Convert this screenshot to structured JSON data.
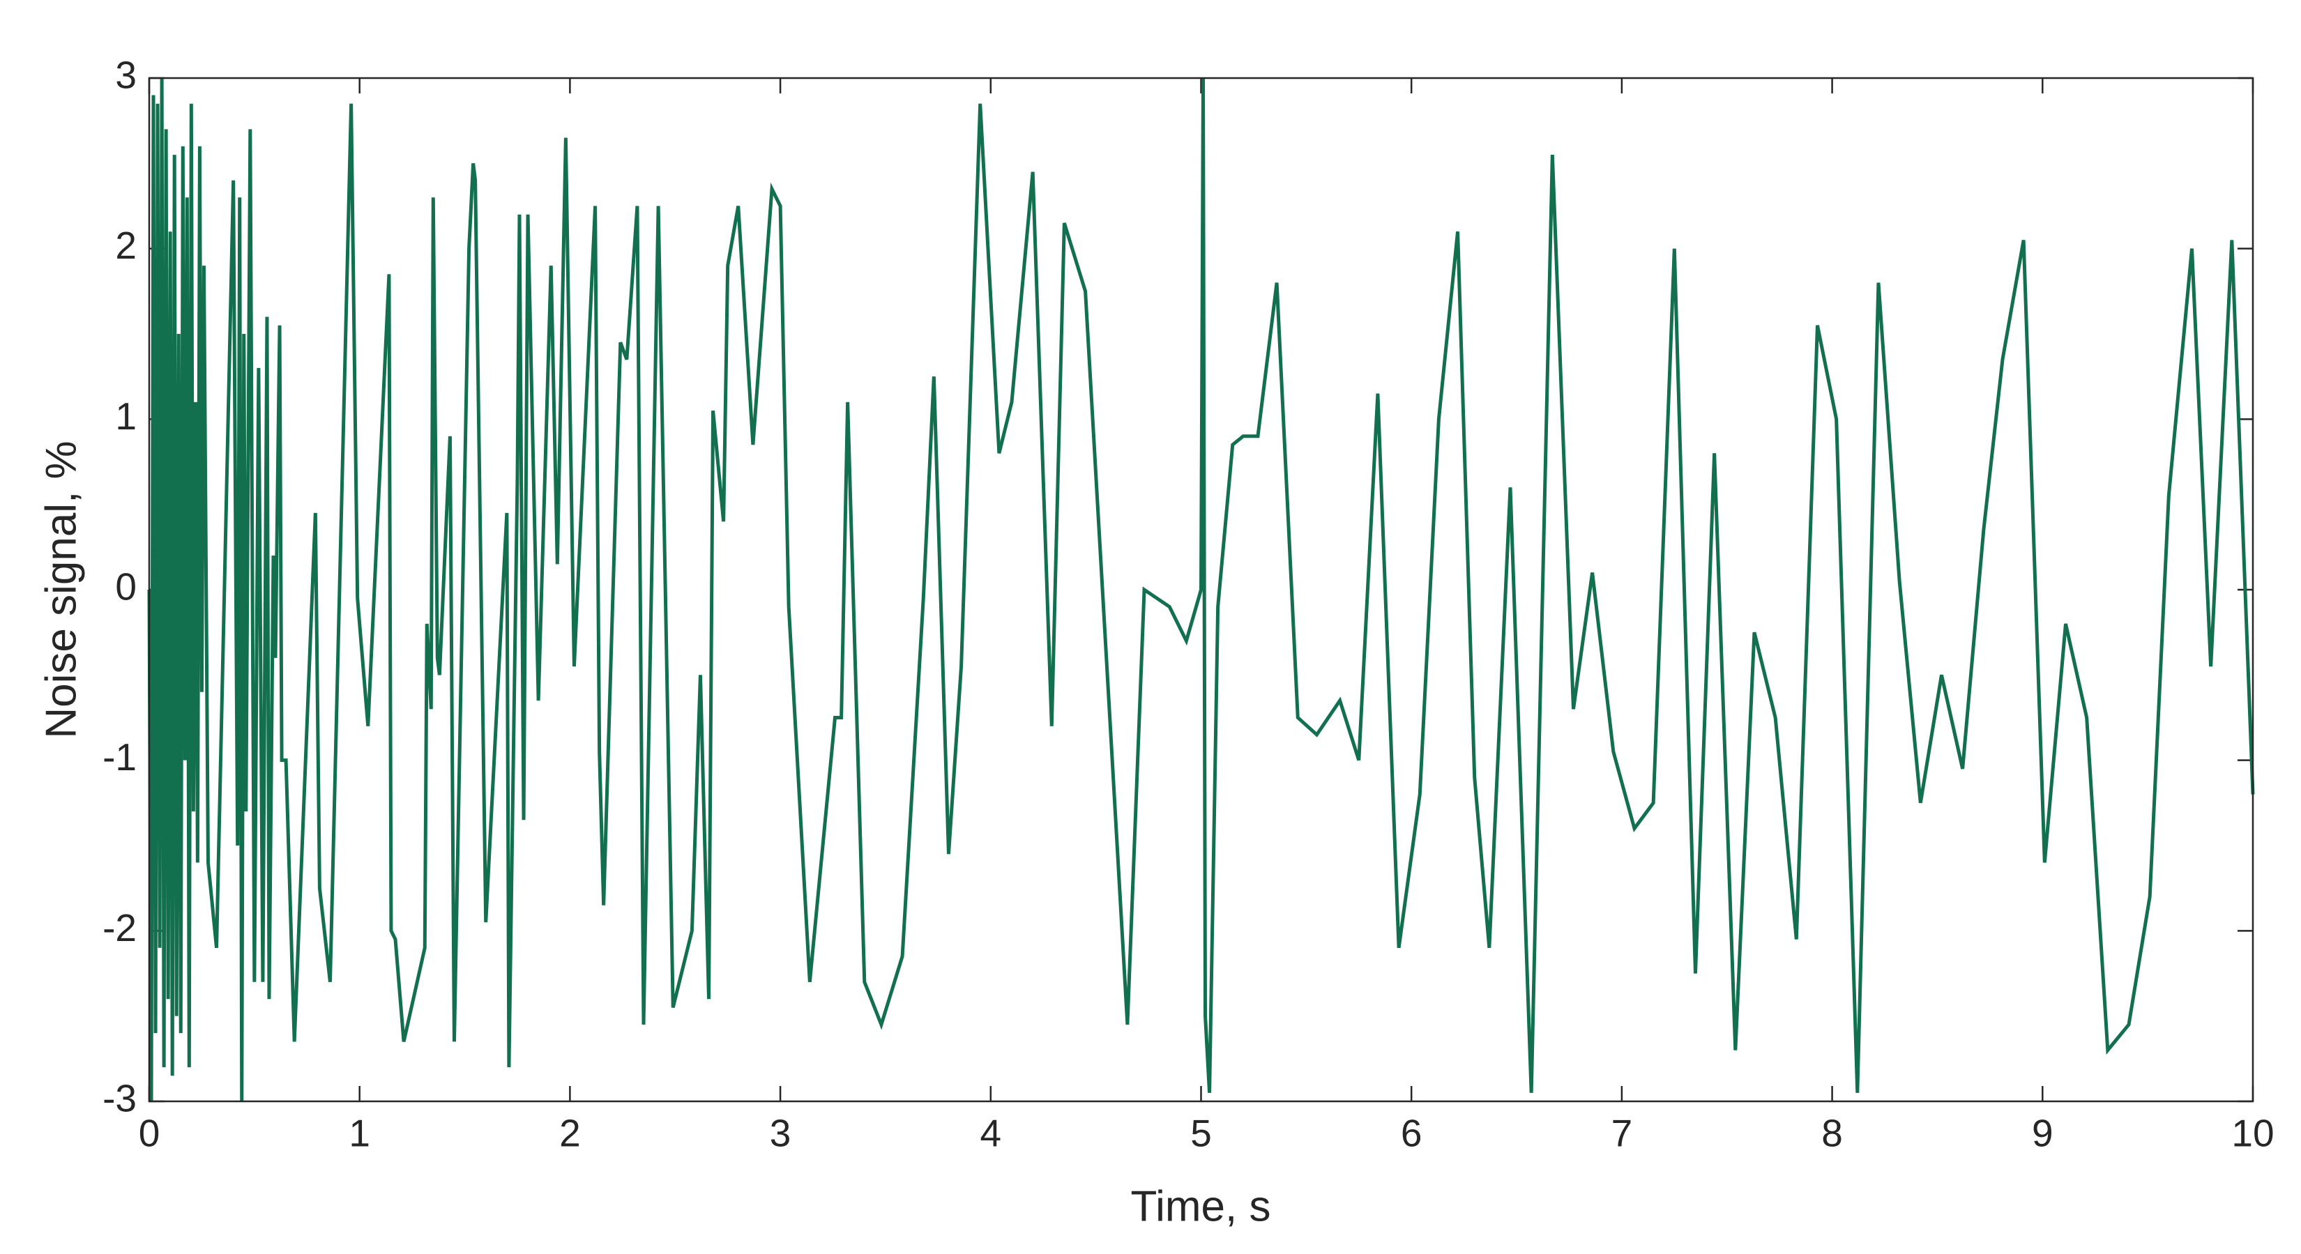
{
  "chart_data": {
    "type": "line",
    "xlabel": "Time, s",
    "ylabel": "Noise signal, %",
    "color": "#12704f",
    "xlim": [
      0,
      10
    ],
    "ylim": [
      -3,
      3
    ],
    "xticks": [
      0,
      1,
      2,
      3,
      4,
      5,
      6,
      7,
      8,
      9,
      10
    ],
    "yticks": [
      -3,
      -2,
      -1,
      0,
      1,
      2,
      3
    ],
    "grid": false,
    "x": [
      0,
      0.01,
      0.02,
      0.03,
      0.04,
      0.05,
      0.06,
      0.07,
      0.08,
      0.09,
      0.1,
      0.11,
      0.12,
      0.13,
      0.14,
      0.15,
      0.16,
      0.17,
      0.18,
      0.19,
      0.2,
      0.21,
      0.22,
      0.23,
      0.24,
      0.25,
      0.26,
      0.28,
      0.32,
      0.4,
      0.42,
      0.43,
      0.44,
      0.45,
      0.46,
      0.48,
      0.5,
      0.52,
      0.54,
      0.56,
      0.57,
      0.59,
      0.6,
      0.62,
      0.63,
      0.65,
      0.69,
      0.79,
      0.81,
      0.86,
      0.96,
      0.99,
      1.04,
      1.14,
      1.15,
      1.17,
      1.21,
      1.31,
      1.32,
      1.34,
      1.35,
      1.37,
      1.38,
      1.43,
      1.45,
      1.52,
      1.54,
      1.55,
      1.6,
      1.7,
      1.71,
      1.75,
      1.76,
      1.78,
      1.8,
      1.85,
      1.91,
      1.94,
      1.98,
      2.02,
      2.12,
      2.14,
      2.16,
      2.24,
      2.27,
      2.32,
      2.35,
      2.42,
      2.49,
      2.58,
      2.62,
      2.66,
      2.68,
      2.73,
      2.75,
      2.8,
      2.83,
      2.87,
      2.96,
      3.0,
      3.04,
      3.14,
      3.26,
      3.29,
      3.32,
      3.4,
      3.48,
      3.58,
      3.68,
      3.73,
      3.8,
      3.86,
      3.95,
      4.04,
      4.1,
      4.2,
      4.29,
      4.35,
      4.45,
      4.65,
      4.73,
      4.85,
      4.93,
      5.0,
      5.01,
      5.02,
      5.04,
      5.08,
      5.15,
      5.2,
      5.27,
      5.36,
      5.46,
      5.55,
      5.66,
      5.75,
      5.84,
      5.94,
      6.04,
      6.13,
      6.22,
      6.3,
      6.37,
      6.47,
      6.57,
      6.67,
      6.77,
      6.86,
      6.96,
      7.06,
      7.15,
      7.25,
      7.35,
      7.44,
      7.54,
      7.63,
      7.73,
      7.83,
      7.93,
      8.02,
      8.12,
      8.22,
      8.32,
      8.42,
      8.52,
      8.62,
      8.72,
      8.81,
      8.91,
      9.01,
      9.11,
      9.21,
      9.31,
      9.41,
      9.51,
      9.6,
      9.71,
      9.8,
      9.9,
      10
    ],
    "values": [
      0,
      -3,
      2.9,
      -2.6,
      2.85,
      -2.1,
      3,
      -2.8,
      2.7,
      -2.4,
      2.1,
      -2.85,
      2.55,
      -2.5,
      1.5,
      -2.6,
      2.6,
      -1.0,
      2.3,
      -2.8,
      2.85,
      -1.3,
      1.1,
      -1.6,
      2.6,
      -0.6,
      1.9,
      -1.6,
      -2.1,
      2.4,
      -1.5,
      2.3,
      -3,
      1.5,
      -1.3,
      2.7,
      -2.3,
      1.3,
      -2.3,
      1.6,
      -2.4,
      0.2,
      -0.4,
      1.55,
      -1.0,
      -1.0,
      -2.65,
      0.45,
      -1.75,
      -2.3,
      2.85,
      -0.05,
      -0.8,
      1.85,
      -2.0,
      -2.05,
      -2.65,
      -2.1,
      -0.2,
      -0.7,
      2.3,
      -0.4,
      -0.5,
      0.9,
      -2.65,
      2.0,
      2.5,
      2.4,
      -1.95,
      0.45,
      -2.8,
      0.65,
      2.2,
      -1.35,
      2.2,
      -0.65,
      1.9,
      0.15,
      2.65,
      -0.45,
      2.25,
      -0.95,
      -1.85,
      1.45,
      1.35,
      2.25,
      -2.55,
      2.25,
      -2.45,
      -2.0,
      -0.5,
      -2.4,
      1.05,
      0.4,
      1.9,
      2.25,
      1.65,
      0.85,
      2.35,
      2.25,
      -0.1,
      -2.3,
      -0.75,
      -0.75,
      1.1,
      -2.3,
      -2.55,
      -2.15,
      -0.05,
      1.25,
      -1.55,
      -0.45,
      2.85,
      0.8,
      1.1,
      2.45,
      -0.8,
      2.15,
      1.75,
      -2.55,
      0.0,
      -0.1,
      -0.3,
      0.0,
      3.0,
      -2.5,
      -2.95,
      -0.1,
      0.85,
      0.9,
      0.9,
      1.8,
      -0.75,
      -0.85,
      -0.65,
      -1.0,
      1.15,
      -2.1,
      -1.2,
      1.0,
      2.1,
      -1.1,
      -2.1,
      0.6,
      -2.95,
      2.55,
      -0.7,
      0.1,
      -0.95,
      -1.4,
      -1.25,
      2.0,
      -2.25,
      0.8,
      -2.7,
      -0.25,
      -0.75,
      -2.05,
      1.55,
      1.0,
      -2.95,
      1.8,
      0.05,
      -1.25,
      -0.5,
      -1.05,
      0.35,
      1.35,
      2.05,
      -1.6,
      -0.2,
      -0.75,
      -2.7,
      -2.55,
      -1.8,
      0.55,
      2.0,
      -0.45,
      2.05,
      -1.2
    ]
  }
}
